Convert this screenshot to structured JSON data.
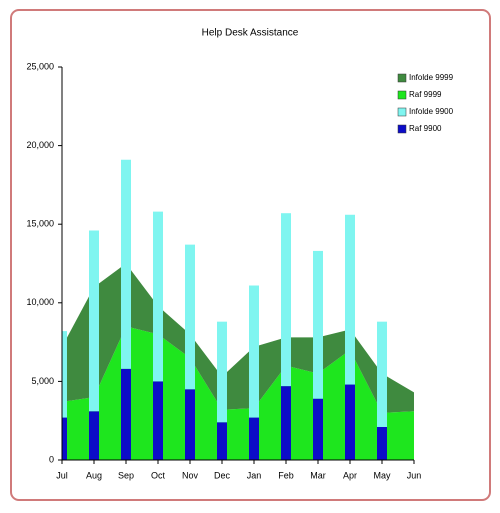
{
  "chart_data": {
    "type": "combo",
    "title": "Help Desk Assistance",
    "categories": [
      "Jul",
      "Aug",
      "Sep",
      "Oct",
      "Nov",
      "Dec",
      "Jan",
      "Feb",
      "Mar",
      "Apr",
      "May",
      "Jun"
    ],
    "series": [
      {
        "name": "Infolde 9999",
        "type": "area",
        "color": "#3f8a3f",
        "values": [
          3500,
          7000,
          4000,
          1800,
          1500,
          2100,
          3900,
          1800,
          2300,
          1300,
          2500,
          1200
        ]
      },
      {
        "name": "Raf 9999",
        "type": "area",
        "color": "#1ee61e",
        "values": [
          3700,
          4000,
          8500,
          8000,
          6500,
          3200,
          3300,
          6000,
          5500,
          7000,
          3000,
          3100
        ]
      },
      {
        "name": "Infolde 9900",
        "type": "bar",
        "color": "#7ff5f0",
        "values": [
          5500,
          11500,
          13300,
          10800,
          9200,
          6400,
          8400,
          11000,
          9400,
          10800,
          6700,
          null
        ]
      },
      {
        "name": "Raf 9900",
        "type": "bar",
        "color": "#0c0cc8",
        "values": [
          2700,
          3100,
          5800,
          5000,
          4500,
          2400,
          2700,
          4700,
          3900,
          4800,
          2100,
          null
        ]
      }
    ],
    "ylim": [
      0,
      25000
    ],
    "yticks": [
      0,
      {
        "value": 5000,
        "label": "5,000"
      },
      {
        "value": 10000,
        "label": "10,000"
      },
      {
        "value": 15000,
        "label": "15,000"
      },
      {
        "value": 20000,
        "label": "20,000"
      },
      {
        "value": 25000,
        "label": "25,000"
      }
    ],
    "legend": "top-right"
  }
}
